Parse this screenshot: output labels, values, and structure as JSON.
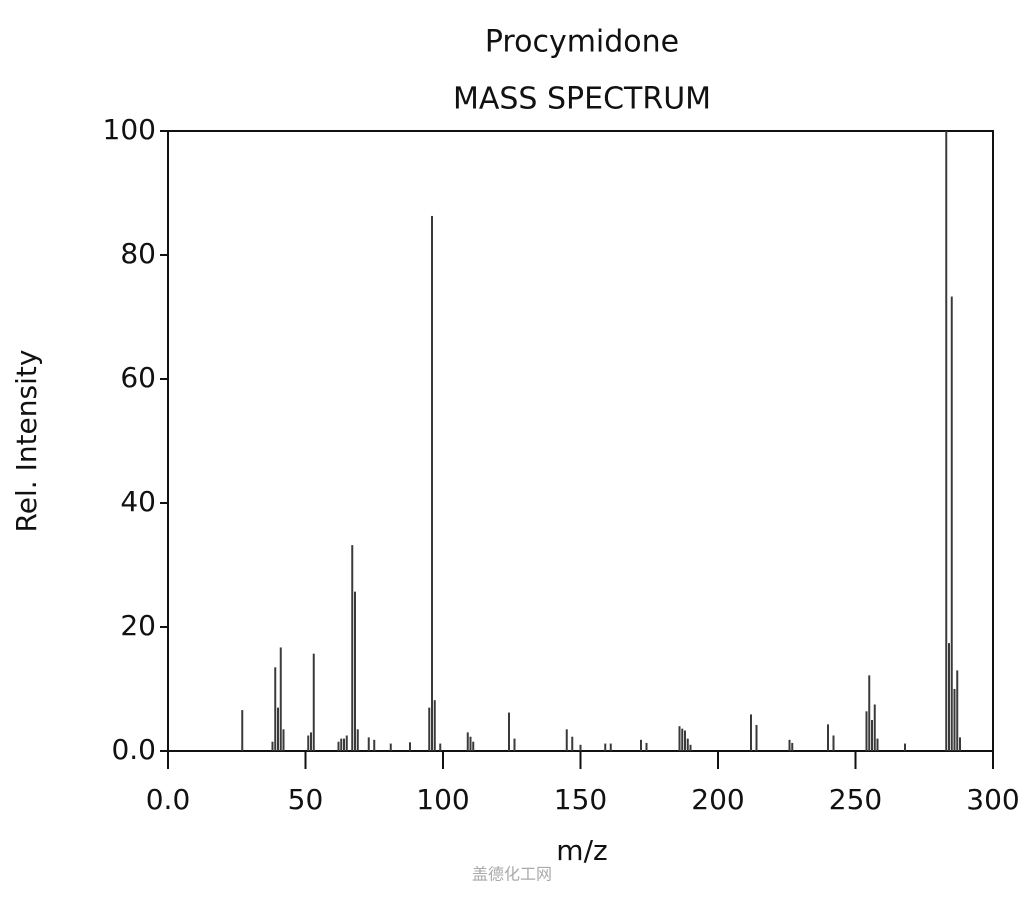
{
  "chart_data": {
    "type": "bar",
    "title": "Procymidone",
    "subtitle": "MASS SPECTRUM",
    "x_label": "m/z",
    "y_label": "Rel. Intensity",
    "watermark": "盖德化工网",
    "color": "#3a3a3a",
    "x": [
      27,
      38,
      39,
      40,
      41,
      42,
      51,
      52,
      53,
      62,
      63,
      64,
      65,
      67,
      68,
      69,
      73,
      75,
      81,
      88,
      95,
      96,
      97,
      99,
      109,
      110,
      111,
      124,
      126,
      145,
      147,
      150,
      159,
      161,
      172,
      174,
      186,
      187,
      188,
      189,
      190,
      212,
      214,
      226,
      227,
      240,
      242,
      254,
      255,
      256,
      257,
      258,
      268,
      283,
      284,
      285,
      286,
      287,
      288
    ],
    "values": [
      6.6,
      1.5,
      13.5,
      7,
      16.7,
      3.5,
      2.5,
      3,
      15.7,
      1.5,
      2,
      2,
      2.5,
      33.2,
      25.7,
      3.5,
      2.2,
      1.8,
      1.2,
      1.4,
      7,
      86.3,
      8.2,
      1.2,
      3,
      2.3,
      1.5,
      6.2,
      2,
      3.5,
      2.3,
      1,
      1.2,
      1.2,
      1.8,
      1.3,
      4,
      3.6,
      3.3,
      2,
      1,
      5.9,
      4.2,
      1.8,
      1.3,
      4.3,
      2.5,
      6.4,
      12.2,
      5,
      7.5,
      2,
      1.2,
      100,
      17.4,
      73.3,
      10,
      13,
      2.2
    ],
    "xlim": [
      0,
      300
    ],
    "ylim": [
      0,
      100
    ],
    "xticks": [
      {
        "value": 0,
        "label": "0.0"
      },
      50,
      100,
      150,
      200,
      250,
      300
    ],
    "yticks": [
      {
        "value": 0,
        "label": "0.0"
      },
      20,
      40,
      60,
      80,
      100
    ]
  }
}
